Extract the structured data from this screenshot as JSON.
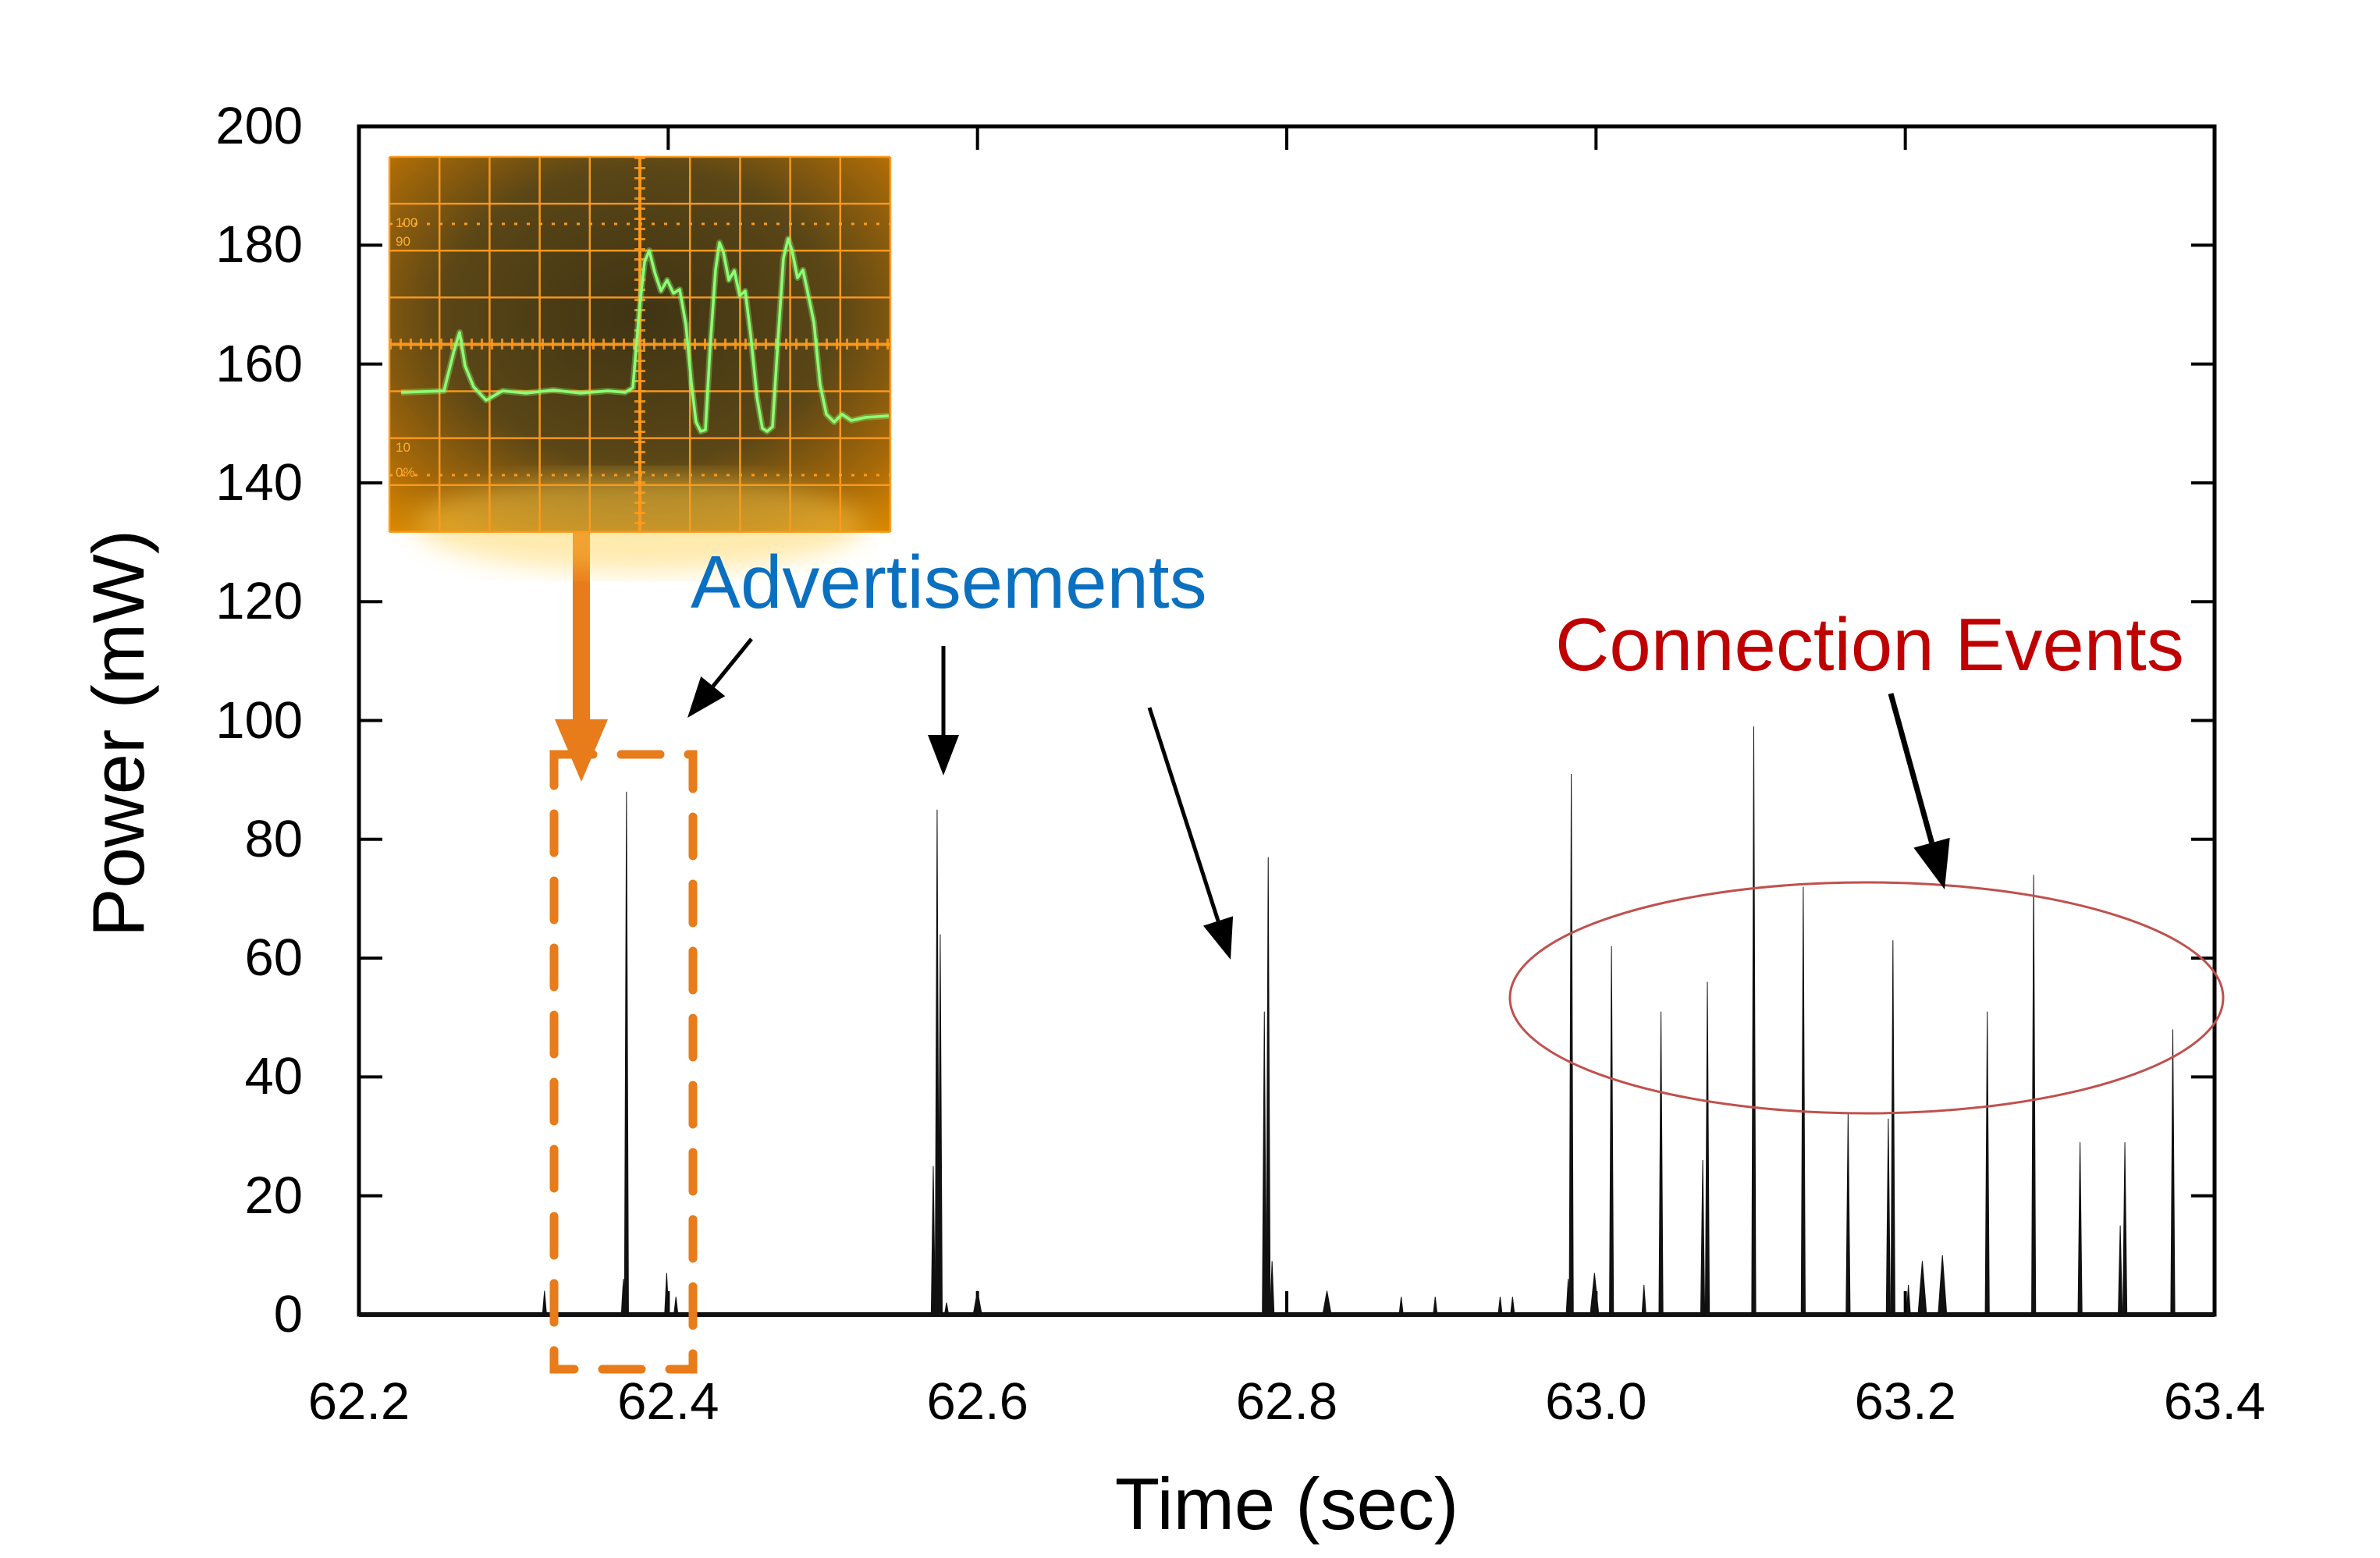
{
  "labels": {
    "y_axis": "Power (mW)",
    "x_axis": "Time (sec)",
    "advertisements": "Advertisements",
    "connection_events": "Connection Events"
  },
  "colors": {
    "advertisements_text": "#0B70C0",
    "connection_events_text": "#C00000",
    "ellipse": "#C0504D",
    "orange_accent": "#E87B1A",
    "spike": "#111111",
    "axis": "#000000",
    "scope_grid": "#ff9b1e",
    "scope_trace": "#8cff74",
    "scope_bg_inner": "#3f3414",
    "scope_bg_outer": "#e08d00",
    "scope_text": "#ffae33"
  },
  "chart_data": {
    "type": "line",
    "title": "",
    "xlabel": "Time (sec)",
    "ylabel": "Power (mW)",
    "xlim": [
      62.2,
      63.4
    ],
    "ylim": [
      0,
      200
    ],
    "grid": false,
    "x_ticks": [
      62.2,
      62.4,
      62.6,
      62.8,
      63.0,
      63.2,
      63.4
    ],
    "x_tick_labels": [
      "62.2",
      "62.4",
      "62.6",
      "62.8",
      "63.0",
      "63.2",
      "63.4"
    ],
    "y_ticks": [
      0,
      20,
      40,
      60,
      80,
      100,
      120,
      140,
      160,
      180,
      200
    ],
    "y_tick_labels": [
      "0",
      "20",
      "40",
      "60",
      "80",
      "100",
      "120",
      "140",
      "160",
      "180",
      "200"
    ],
    "series_note": "power spikes: [time_sec, power_mW, thick_flag]",
    "spikes": [
      [
        62.32,
        4,
        0
      ],
      [
        62.371,
        6,
        0
      ],
      [
        62.373,
        88,
        0
      ],
      [
        62.399,
        7,
        0
      ],
      [
        62.405,
        3,
        0
      ],
      [
        62.5714,
        25,
        0
      ],
      [
        62.5739,
        85,
        0
      ],
      [
        62.5759,
        64,
        0
      ],
      [
        62.58,
        2,
        0
      ],
      [
        62.6,
        4,
        1
      ],
      [
        62.7855,
        51,
        0
      ],
      [
        62.788,
        77,
        0
      ],
      [
        62.7905,
        9,
        0
      ],
      [
        62.826,
        4,
        1
      ],
      [
        62.874,
        3,
        0
      ],
      [
        62.896,
        3,
        0
      ],
      [
        62.938,
        3,
        0
      ],
      [
        62.946,
        3,
        0
      ],
      [
        62.982,
        6,
        0
      ],
      [
        62.984,
        91,
        0
      ],
      [
        62.999,
        7,
        1
      ],
      [
        63.01,
        62,
        0
      ],
      [
        63.031,
        5,
        0
      ],
      [
        63.042,
        51,
        0
      ],
      [
        63.069,
        26,
        0
      ],
      [
        63.072,
        56,
        0
      ],
      [
        63.102,
        99,
        0
      ],
      [
        63.134,
        72,
        0
      ],
      [
        63.163,
        34,
        0
      ],
      [
        63.189,
        33,
        0
      ],
      [
        63.192,
        63,
        0
      ],
      [
        63.202,
        5,
        0
      ],
      [
        63.211,
        9,
        1
      ],
      [
        63.224,
        10,
        1
      ],
      [
        63.253,
        51,
        0
      ],
      [
        63.283,
        74,
        0
      ],
      [
        63.313,
        29,
        0
      ],
      [
        63.339,
        15,
        0
      ],
      [
        63.342,
        29,
        0
      ],
      [
        63.373,
        48,
        0
      ]
    ],
    "annotations": [
      {
        "text": "Advertisements",
        "color": "#0B70C0",
        "points_to_t": [
          62.373,
          62.574,
          62.788
        ]
      },
      {
        "text": "Connection Events",
        "color": "#C00000",
        "region_t": [
          62.95,
          63.41
        ]
      }
    ]
  },
  "oscilloscope_inset": {
    "grid_labels": [
      "100",
      "90",
      "10",
      "0%"
    ],
    "trace_points": "15,302 70,300 83,248 90,225 97,268 108,295 124,312 145,300 175,303 210,299 245,303 280,300 302,302 312,296 320,200 327,135 333,120 340,148 348,172 356,158 364,175 372,170 380,215 387,290 393,340 399,352 405,350 411,245 418,145 423,110 428,122 435,158 442,146 449,178 456,172 463,228 471,308 478,348 484,352 491,346 498,235 505,130 511,105 516,120 523,155 530,145 537,178 544,212 552,292 560,330 570,340 580,330 592,338 610,334 640,332"
  }
}
